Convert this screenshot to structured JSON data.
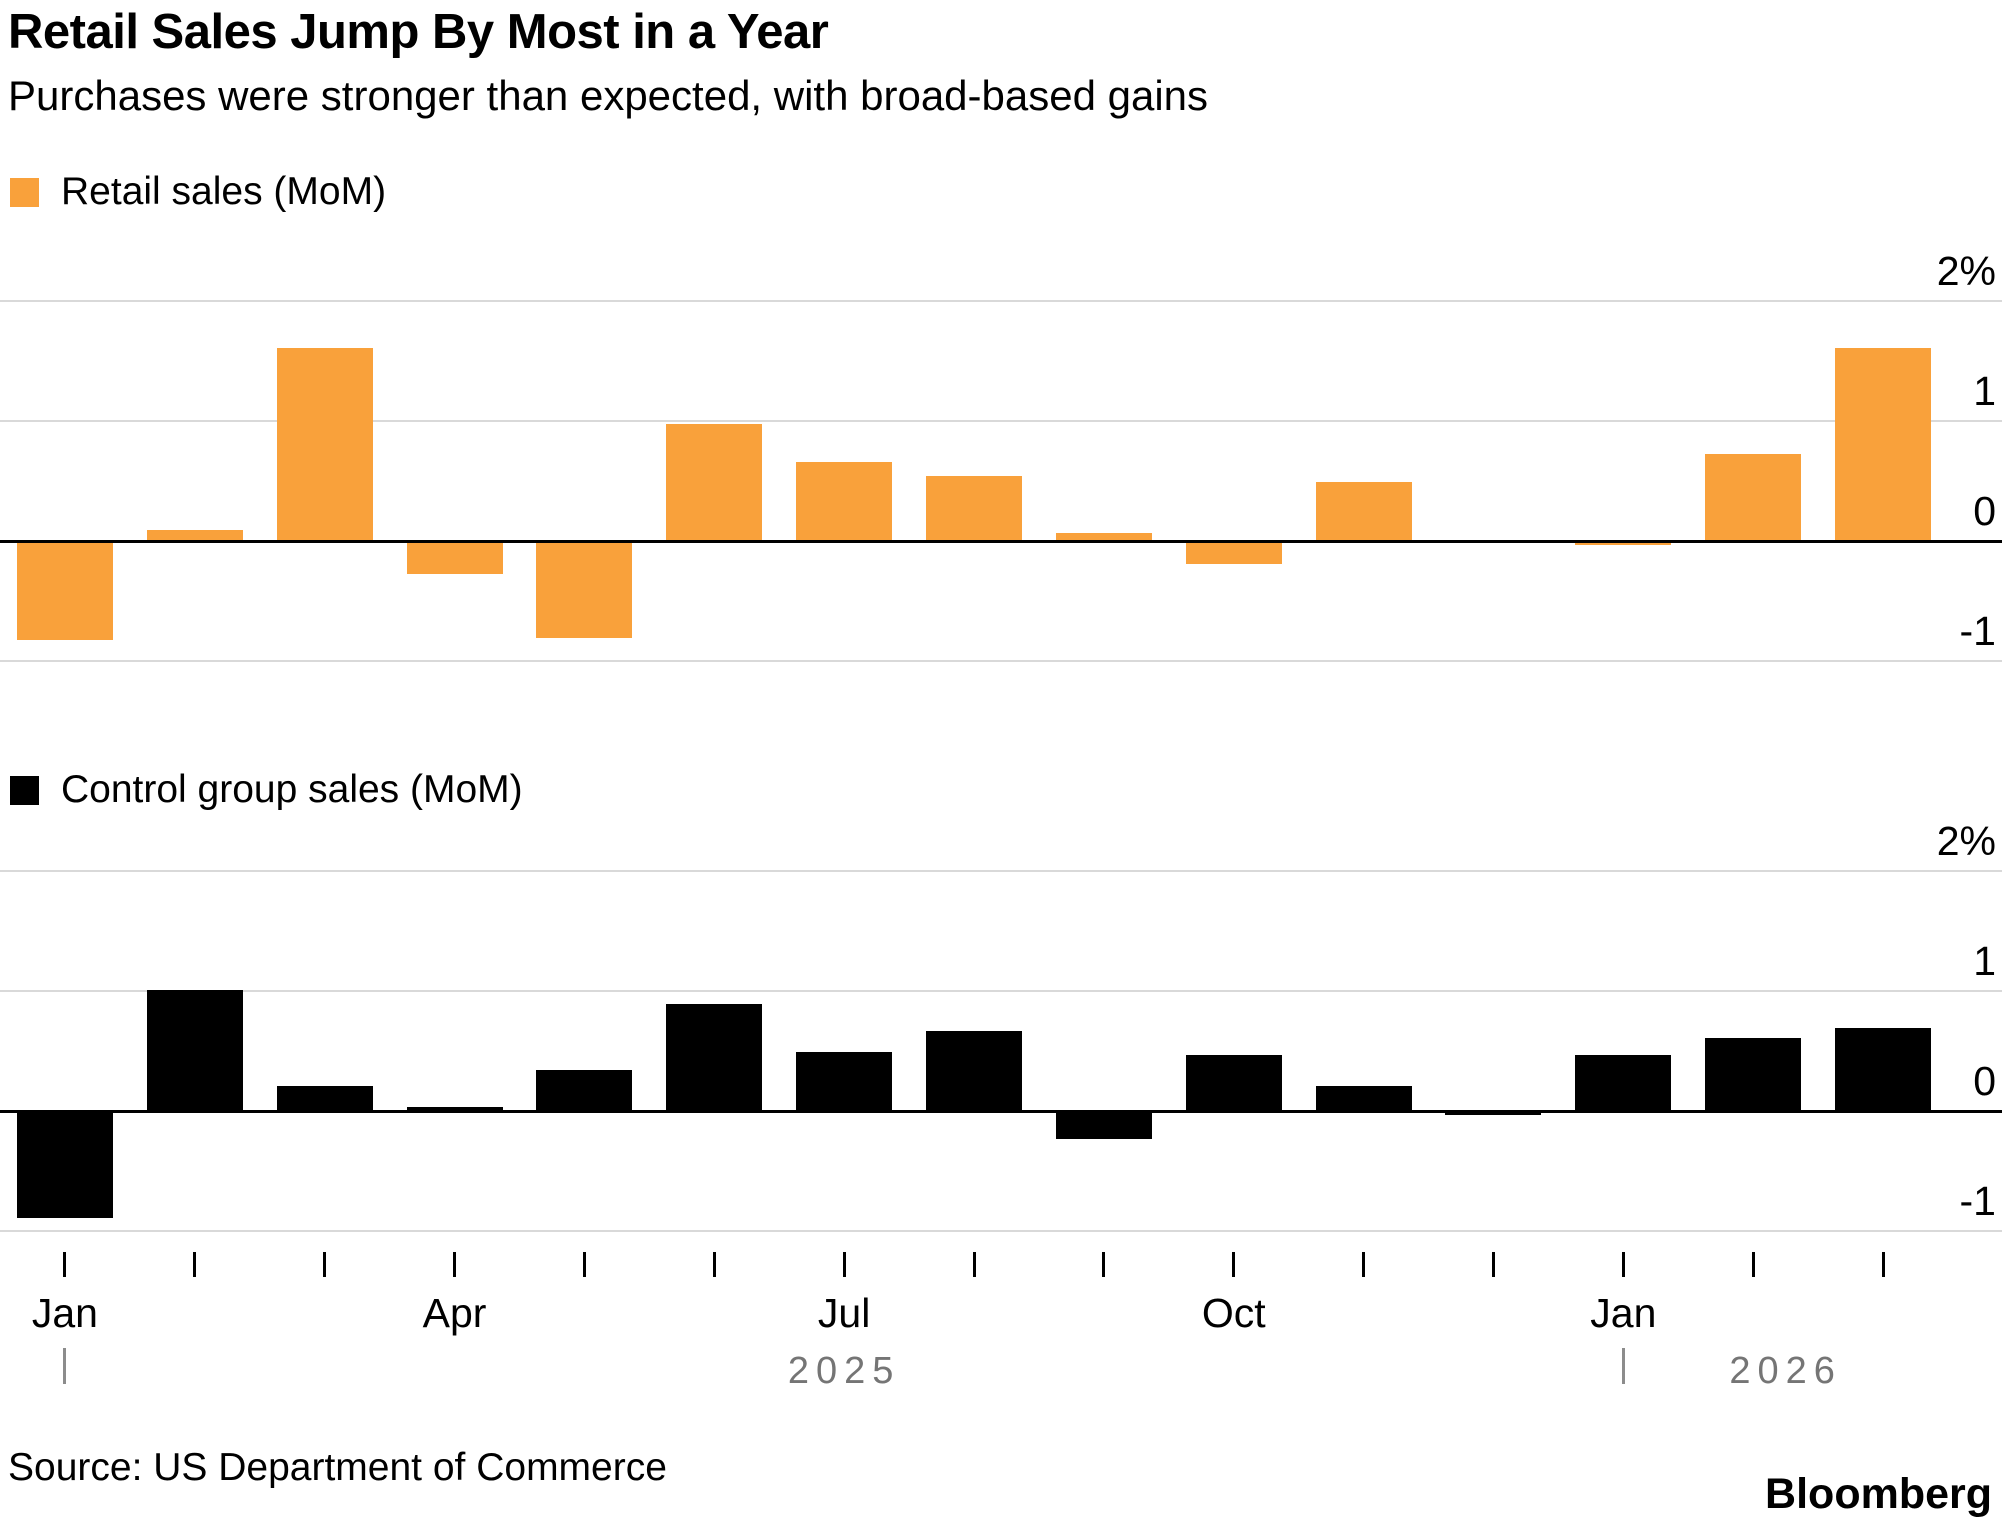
{
  "title": "Retail Sales Jump By Most in a Year",
  "subtitle": "Purchases were stronger than expected, with broad-based gains",
  "source": "Source: US Department of Commerce",
  "brand": "Bloomberg",
  "colors": {
    "retail_bar": "#F9A13B",
    "control_bar": "#000000",
    "gridline": "#D9D9D9",
    "zero_line": "#000000",
    "year_text": "#757575"
  },
  "chart_data": [
    {
      "type": "bar",
      "title": "Retail sales (MoM)",
      "color": "#F9A13B",
      "unit": "%",
      "grid": true,
      "legend_position": "top-left",
      "ylim": [
        -1.2,
        2.25
      ],
      "categories": [
        "Jan 2025",
        "Feb 2025",
        "Mar 2025",
        "Apr 2025",
        "May 2025",
        "Jun 2025",
        "Jul 2025",
        "Aug 2025",
        "Sep 2025",
        "Oct 2025",
        "Nov 2025",
        "Dec 2025",
        "Jan 2026",
        "Feb 2026",
        "Mar 2026"
      ],
      "values": [
        -0.83,
        0.08,
        1.6,
        -0.28,
        -0.82,
        0.97,
        0.65,
        0.53,
        0.06,
        -0.2,
        0.48,
        0,
        -0.04,
        0.72,
        1.6
      ],
      "yticks": [
        {
          "value": 2,
          "label": "2%"
        },
        {
          "value": 1,
          "label": "1"
        },
        {
          "value": 0,
          "label": "0"
        },
        {
          "value": -1,
          "label": "-1"
        }
      ]
    },
    {
      "type": "bar",
      "title": "Control group sales (MoM)",
      "color": "#000000",
      "unit": "%",
      "grid": true,
      "legend_position": "top-left",
      "ylim": [
        -1.2,
        2.25
      ],
      "categories": [
        "Jan 2025",
        "Feb 2025",
        "Mar 2025",
        "Apr 2025",
        "May 2025",
        "Jun 2025",
        "Jul 2025",
        "Aug 2025",
        "Sep 2025",
        "Oct 2025",
        "Nov 2025",
        "Dec 2025",
        "Jan 2026",
        "Feb 2026",
        "Mar 2026"
      ],
      "values": [
        -0.9,
        1.0,
        0.2,
        0.02,
        0.33,
        0.88,
        0.48,
        0.66,
        -0.24,
        0.46,
        0.2,
        -0.04,
        0.46,
        0.6,
        0.68
      ],
      "yticks": [
        {
          "value": 2,
          "label": "2%"
        },
        {
          "value": 1,
          "label": "1"
        },
        {
          "value": 0,
          "label": "0"
        },
        {
          "value": -1,
          "label": "-1"
        }
      ]
    }
  ],
  "x_axis": {
    "tick_labels": [
      {
        "label": "Jan",
        "index": 0
      },
      {
        "label": "Apr",
        "index": 3
      },
      {
        "label": "Jul",
        "index": 6
      },
      {
        "label": "Oct",
        "index": 9
      },
      {
        "label": "Jan",
        "index": 12
      }
    ],
    "year_markers": [
      {
        "label": "2025",
        "tick_index": 0
      },
      {
        "label": "2026",
        "tick_index": 12
      }
    ]
  }
}
